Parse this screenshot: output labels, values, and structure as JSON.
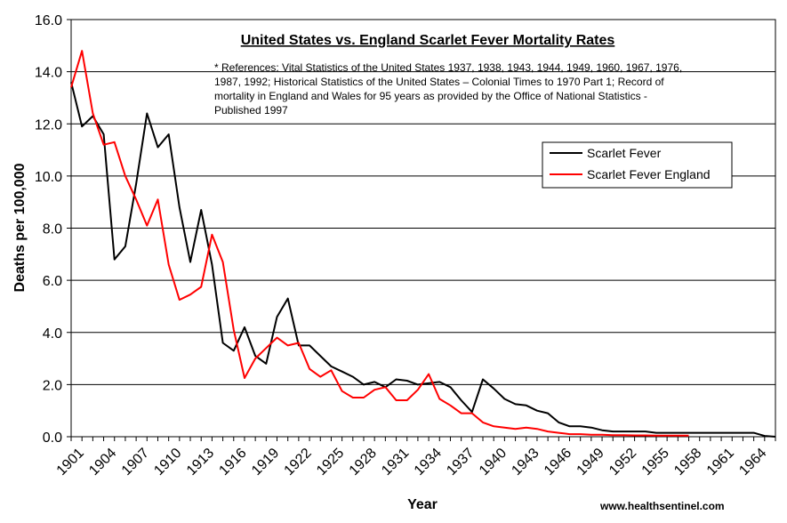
{
  "chart_data": {
    "type": "line",
    "title": "United States vs. England Scarlet Fever Mortality Rates",
    "note_lines": [
      "* References: Vital Statistics of the United States 1937, 1938, 1943, 1944, 1949, 1960, 1967, 1976,",
      "1987, 1992; Historical Statistics of the United States – Colonial Times to 1970 Part 1; Record of",
      "mortality in England and Wales for 95 years as provided by the Office of National Statistics -",
      "Published 1997"
    ],
    "xlabel": "Year",
    "ylabel": "Deaths per 100,000",
    "source": "www.healthsentinel.com",
    "ylim": [
      0,
      16
    ],
    "yticks": [
      "0.0",
      "2.0",
      "4.0",
      "6.0",
      "8.0",
      "10.0",
      "12.0",
      "14.0",
      "16.0"
    ],
    "xlim": [
      1901,
      1966
    ],
    "xticks": [
      "1901",
      "1904",
      "1907",
      "1910",
      "1913",
      "1916",
      "1919",
      "1922",
      "1925",
      "1928",
      "1931",
      "1934",
      "1937",
      "1940",
      "1943",
      "1946",
      "1949",
      "1952",
      "1955",
      "1958",
      "1961",
      "1964"
    ],
    "legend_position": "top-right",
    "series": [
      {
        "name": "Scarlet Fever",
        "color": "#000000",
        "x": [
          1901,
          1902,
          1903,
          1904,
          1905,
          1906,
          1907,
          1908,
          1909,
          1910,
          1911,
          1912,
          1913,
          1914,
          1915,
          1916,
          1917,
          1918,
          1919,
          1920,
          1921,
          1922,
          1923,
          1924,
          1925,
          1926,
          1927,
          1928,
          1929,
          1930,
          1931,
          1932,
          1933,
          1934,
          1935,
          1936,
          1937,
          1938,
          1939,
          1940,
          1941,
          1942,
          1943,
          1944,
          1945,
          1946,
          1947,
          1948,
          1949,
          1950,
          1951,
          1952,
          1953,
          1954,
          1955,
          1956,
          1957,
          1958,
          1959,
          1960,
          1961,
          1962,
          1963,
          1964,
          1965,
          1966
        ],
        "values": [
          13.6,
          11.9,
          12.3,
          11.6,
          6.8,
          7.3,
          9.7,
          12.4,
          11.1,
          11.6,
          8.8,
          6.7,
          8.7,
          6.6,
          3.6,
          3.3,
          4.2,
          3.1,
          2.8,
          4.6,
          5.3,
          3.5,
          3.5,
          3.1,
          2.7,
          2.5,
          2.3,
          2.0,
          2.1,
          1.9,
          2.2,
          2.15,
          2.0,
          2.05,
          2.1,
          1.9,
          1.4,
          0.95,
          2.2,
          1.85,
          1.45,
          1.25,
          1.2,
          1.0,
          0.9,
          0.55,
          0.4,
          0.4,
          0.35,
          0.25,
          0.2,
          0.2,
          0.2,
          0.2,
          0.15,
          0.15,
          0.15,
          0.15,
          0.15,
          0.15,
          0.15,
          0.15,
          0.15,
          0.15,
          0.03,
          0.0
        ]
      },
      {
        "name": "Scarlet Fever England",
        "color": "#ff0000",
        "x": [
          1901,
          1902,
          1903,
          1904,
          1905,
          1906,
          1907,
          1908,
          1909,
          1910,
          1911,
          1912,
          1913,
          1914,
          1915,
          1916,
          1917,
          1918,
          1919,
          1920,
          1921,
          1922,
          1923,
          1924,
          1925,
          1926,
          1927,
          1928,
          1929,
          1930,
          1931,
          1932,
          1933,
          1934,
          1935,
          1936,
          1937,
          1938,
          1939,
          1940,
          1941,
          1942,
          1943,
          1944,
          1945,
          1946,
          1947,
          1948,
          1949,
          1950,
          1951,
          1952,
          1953,
          1954,
          1955,
          1956,
          1957,
          1958
        ],
        "values": [
          13.4,
          14.8,
          12.4,
          11.2,
          11.3,
          10.0,
          9.1,
          8.1,
          9.1,
          6.6,
          5.25,
          5.45,
          5.75,
          7.75,
          6.7,
          4.1,
          2.25,
          3.0,
          3.4,
          3.8,
          3.5,
          3.6,
          2.6,
          2.3,
          2.55,
          1.75,
          1.5,
          1.5,
          1.8,
          1.9,
          1.4,
          1.4,
          1.8,
          2.4,
          1.45,
          1.2,
          0.9,
          0.9,
          0.55,
          0.4,
          0.35,
          0.3,
          0.35,
          0.3,
          0.2,
          0.15,
          0.1,
          0.1,
          0.08,
          0.08,
          0.06,
          0.06,
          0.05,
          0.05,
          0.04,
          0.04,
          0.04,
          0.04
        ]
      }
    ]
  }
}
